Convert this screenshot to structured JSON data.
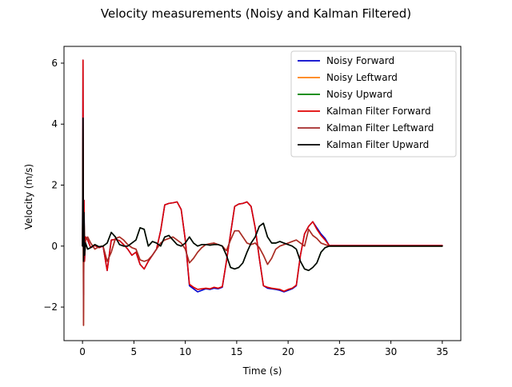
{
  "chart_data": {
    "type": "line",
    "title": "Velocity measurements (Noisy and Kalman Filtered)",
    "xlabel": "Time (s)",
    "ylabel": "Velocity (m/s)",
    "xlim": [
      -1.8,
      36.8
    ],
    "ylim": [
      -3.1,
      6.55
    ],
    "xticks": [
      0,
      5,
      10,
      15,
      20,
      25,
      30,
      35
    ],
    "yticks": [
      -2,
      0,
      2,
      4,
      6
    ],
    "xtick_labels": [
      "0",
      "5",
      "10",
      "15",
      "20",
      "25",
      "30",
      "35"
    ],
    "ytick_labels": [
      "−2",
      "0",
      "2",
      "4",
      "6"
    ],
    "grid": false,
    "legend_position": "top-right",
    "series": [
      {
        "name": "Noisy Forward",
        "color": "#0000cc",
        "x": [
          0,
          0.05,
          0.1,
          0.15,
          0.2,
          0.3,
          0.5,
          0.8,
          1.2,
          1.6,
          2,
          2.4,
          2.8,
          3.2,
          3.6,
          4,
          4.4,
          4.8,
          5.2,
          5.6,
          6,
          6.4,
          6.8,
          7.2,
          7.6,
          8,
          8.4,
          8.8,
          9.2,
          9.6,
          10,
          10.4,
          10.8,
          11.2,
          11.6,
          12,
          12.4,
          12.8,
          13.2,
          13.6,
          14,
          14.4,
          14.8,
          15.2,
          15.6,
          16,
          16.4,
          16.8,
          17.2,
          17.6,
          18,
          18.4,
          18.8,
          19.2,
          19.6,
          20,
          20.4,
          20.8,
          21.2,
          21.6,
          22,
          22.4,
          22.8,
          23.2,
          23.6,
          24,
          26,
          28,
          30,
          32,
          34,
          35
        ],
        "y": [
          0.0,
          6.1,
          -1.6,
          1.5,
          -0.5,
          0.3,
          0.2,
          -0.05,
          0.02,
          -0.05,
          0.0,
          -0.8,
          0.2,
          0.22,
          0.18,
          0.05,
          -0.1,
          -0.3,
          -0.2,
          -0.6,
          -0.75,
          -0.5,
          -0.3,
          -0.1,
          0.5,
          1.35,
          1.4,
          1.42,
          1.45,
          1.2,
          0.2,
          -1.3,
          -1.4,
          -1.5,
          -1.45,
          -1.4,
          -1.42,
          -1.38,
          -1.4,
          -1.35,
          -0.5,
          0.4,
          1.3,
          1.38,
          1.4,
          1.45,
          1.3,
          0.6,
          -0.4,
          -1.3,
          -1.38,
          -1.4,
          -1.42,
          -1.45,
          -1.5,
          -1.45,
          -1.4,
          -1.3,
          -0.3,
          0.4,
          0.65,
          0.8,
          0.6,
          0.4,
          0.25,
          0.02,
          0.02,
          0.02,
          0.02,
          0.02,
          0.02,
          0.02
        ]
      },
      {
        "name": "Noisy Leftward",
        "color": "#ff7f0e",
        "x": [
          0,
          0.05,
          0.1,
          0.15,
          0.2,
          0.3,
          0.5,
          0.8,
          1.2,
          1.6,
          2,
          2.4,
          2.8,
          3.2,
          3.6,
          4,
          4.4,
          4.8,
          5.2,
          5.6,
          6,
          6.4,
          6.8,
          7.2,
          7.6,
          8,
          8.4,
          8.8,
          9.2,
          9.6,
          10,
          10.4,
          10.8,
          11.2,
          11.6,
          12,
          12.4,
          12.8,
          13.2,
          13.6,
          14,
          14.4,
          14.8,
          15.2,
          15.6,
          16,
          16.4,
          16.8,
          17.2,
          17.6,
          18,
          18.4,
          18.8,
          19.2,
          19.6,
          20,
          20.4,
          20.8,
          21.2,
          21.6,
          22,
          22.4,
          22.8,
          23.2,
          23.6,
          24,
          26,
          28,
          30,
          32,
          34,
          35
        ],
        "y": [
          0.0,
          2.8,
          -2.6,
          1.0,
          -0.3,
          0.2,
          0.3,
          0.1,
          -0.1,
          -0.02,
          0.0,
          -0.5,
          -0.2,
          0.25,
          0.3,
          0.2,
          0.05,
          -0.05,
          -0.1,
          -0.45,
          -0.5,
          -0.45,
          -0.3,
          -0.1,
          0.1,
          0.2,
          0.25,
          0.3,
          0.2,
          0.1,
          -0.1,
          -0.55,
          -0.4,
          -0.2,
          -0.05,
          0.05,
          0.08,
          0.1,
          0.05,
          0.0,
          -0.15,
          0.2,
          0.5,
          0.5,
          0.3,
          0.1,
          0.05,
          0.1,
          -0.05,
          -0.3,
          -0.6,
          -0.4,
          -0.1,
          0.0,
          0.05,
          0.1,
          0.15,
          0.2,
          0.1,
          0.0,
          0.55,
          0.35,
          0.25,
          0.1,
          0.05,
          0.0,
          0.0,
          0.0,
          0.0,
          0.0,
          0.0,
          0.0
        ]
      },
      {
        "name": "Noisy Upward",
        "color": "#008000",
        "x": [
          0,
          0.05,
          0.1,
          0.15,
          0.2,
          0.3,
          0.5,
          0.8,
          1.2,
          1.6,
          2,
          2.4,
          2.8,
          3.2,
          3.6,
          4,
          4.4,
          4.8,
          5.2,
          5.6,
          6,
          6.4,
          6.8,
          7.2,
          7.6,
          8,
          8.4,
          8.8,
          9.2,
          9.6,
          10,
          10.4,
          10.8,
          11.2,
          11.6,
          12,
          12.4,
          12.8,
          13.2,
          13.6,
          14,
          14.4,
          14.8,
          15.2,
          15.6,
          16,
          16.4,
          16.8,
          17.2,
          17.6,
          18,
          18.4,
          18.8,
          19.2,
          19.6,
          20,
          20.4,
          20.8,
          21.2,
          21.6,
          22,
          22.4,
          22.8,
          23.2,
          23.6,
          24,
          26,
          28,
          30,
          32,
          34,
          35
        ],
        "y": [
          0.0,
          4.2,
          -0.5,
          1.1,
          -0.3,
          0.1,
          -0.1,
          -0.05,
          0.05,
          -0.02,
          0.0,
          0.1,
          0.45,
          0.3,
          0.05,
          0.0,
          0.0,
          0.1,
          0.2,
          0.6,
          0.55,
          0.0,
          0.15,
          0.1,
          0.0,
          0.3,
          0.35,
          0.2,
          0.05,
          0.0,
          0.1,
          0.3,
          0.1,
          0.0,
          0.05,
          0.05,
          0.03,
          0.05,
          0.05,
          0.0,
          -0.3,
          -0.7,
          -0.75,
          -0.7,
          -0.55,
          -0.2,
          0.1,
          0.3,
          0.65,
          0.75,
          0.3,
          0.1,
          0.1,
          0.15,
          0.1,
          0.05,
          0.0,
          -0.1,
          -0.5,
          -0.75,
          -0.8,
          -0.7,
          -0.55,
          -0.2,
          -0.05,
          0.0,
          0.0,
          0.0,
          0.0,
          0.0,
          0.0,
          0.0
        ]
      },
      {
        "name": "Kalman Filter Forward",
        "color": "#e00000",
        "x": [
          0,
          0.05,
          0.1,
          0.15,
          0.2,
          0.3,
          0.5,
          0.8,
          1.2,
          1.6,
          2,
          2.4,
          2.8,
          3.2,
          3.6,
          4,
          4.4,
          4.8,
          5.2,
          5.6,
          6,
          6.4,
          6.8,
          7.2,
          7.6,
          8,
          8.4,
          8.8,
          9.2,
          9.6,
          10,
          10.4,
          10.8,
          11.2,
          11.6,
          12,
          12.4,
          12.8,
          13.2,
          13.6,
          14,
          14.4,
          14.8,
          15.2,
          15.6,
          16,
          16.4,
          16.8,
          17.2,
          17.6,
          18,
          18.4,
          18.8,
          19.2,
          19.6,
          20,
          20.4,
          20.8,
          21.2,
          21.6,
          22,
          22.4,
          22.8,
          23.2,
          23.6,
          24,
          26,
          28,
          30,
          32,
          34,
          35
        ],
        "y": [
          0.0,
          6.1,
          -1.6,
          1.5,
          -0.5,
          0.3,
          0.2,
          -0.05,
          0.02,
          -0.05,
          0.0,
          -0.8,
          0.2,
          0.22,
          0.18,
          0.05,
          -0.1,
          -0.3,
          -0.2,
          -0.6,
          -0.75,
          -0.5,
          -0.3,
          -0.1,
          0.5,
          1.35,
          1.4,
          1.42,
          1.45,
          1.2,
          0.2,
          -1.25,
          -1.35,
          -1.42,
          -1.4,
          -1.38,
          -1.4,
          -1.35,
          -1.38,
          -1.33,
          -0.5,
          0.4,
          1.3,
          1.38,
          1.4,
          1.45,
          1.3,
          0.6,
          -0.4,
          -1.3,
          -1.35,
          -1.38,
          -1.4,
          -1.42,
          -1.48,
          -1.42,
          -1.38,
          -1.28,
          -0.3,
          0.4,
          0.65,
          0.8,
          0.55,
          0.35,
          0.2,
          0.02,
          0.02,
          0.02,
          0.02,
          0.02,
          0.02,
          0.02
        ]
      },
      {
        "name": "Kalman Filter Leftward",
        "color": "#a52a2a",
        "x": [
          0,
          0.05,
          0.1,
          0.15,
          0.2,
          0.3,
          0.5,
          0.8,
          1.2,
          1.6,
          2,
          2.4,
          2.8,
          3.2,
          3.6,
          4,
          4.4,
          4.8,
          5.2,
          5.6,
          6,
          6.4,
          6.8,
          7.2,
          7.6,
          8,
          8.4,
          8.8,
          9.2,
          9.6,
          10,
          10.4,
          10.8,
          11.2,
          11.6,
          12,
          12.4,
          12.8,
          13.2,
          13.6,
          14,
          14.4,
          14.8,
          15.2,
          15.6,
          16,
          16.4,
          16.8,
          17.2,
          17.6,
          18,
          18.4,
          18.8,
          19.2,
          19.6,
          20,
          20.4,
          20.8,
          21.2,
          21.6,
          22,
          22.4,
          22.8,
          23.2,
          23.6,
          24,
          26,
          28,
          30,
          32,
          34,
          35
        ],
        "y": [
          0.0,
          2.8,
          -2.6,
          1.0,
          -0.3,
          0.2,
          0.3,
          0.1,
          -0.1,
          -0.02,
          0.0,
          -0.5,
          -0.2,
          0.25,
          0.3,
          0.2,
          0.05,
          -0.05,
          -0.1,
          -0.45,
          -0.5,
          -0.45,
          -0.3,
          -0.1,
          0.1,
          0.2,
          0.25,
          0.3,
          0.2,
          0.1,
          -0.1,
          -0.55,
          -0.4,
          -0.2,
          -0.05,
          0.05,
          0.08,
          0.1,
          0.05,
          0.0,
          -0.15,
          0.2,
          0.5,
          0.5,
          0.3,
          0.1,
          0.05,
          0.1,
          -0.05,
          -0.3,
          -0.6,
          -0.4,
          -0.1,
          0.0,
          0.05,
          0.1,
          0.15,
          0.2,
          0.1,
          0.0,
          0.55,
          0.35,
          0.25,
          0.1,
          0.05,
          0.0,
          0.0,
          0.0,
          0.0,
          0.0,
          0.0,
          0.0
        ]
      },
      {
        "name": "Kalman Filter Upward",
        "color": "#000000",
        "x": [
          0,
          0.05,
          0.1,
          0.15,
          0.2,
          0.3,
          0.5,
          0.8,
          1.2,
          1.6,
          2,
          2.4,
          2.8,
          3.2,
          3.6,
          4,
          4.4,
          4.8,
          5.2,
          5.6,
          6,
          6.4,
          6.8,
          7.2,
          7.6,
          8,
          8.4,
          8.8,
          9.2,
          9.6,
          10,
          10.4,
          10.8,
          11.2,
          11.6,
          12,
          12.4,
          12.8,
          13.2,
          13.6,
          14,
          14.4,
          14.8,
          15.2,
          15.6,
          16,
          16.4,
          16.8,
          17.2,
          17.6,
          18,
          18.4,
          18.8,
          19.2,
          19.6,
          20,
          20.4,
          20.8,
          21.2,
          21.6,
          22,
          22.4,
          22.8,
          23.2,
          23.6,
          24,
          26,
          28,
          30,
          32,
          34,
          35
        ],
        "y": [
          0.0,
          4.2,
          -0.5,
          1.1,
          -0.3,
          0.1,
          -0.1,
          -0.05,
          0.05,
          -0.02,
          0.0,
          0.1,
          0.45,
          0.3,
          0.05,
          0.0,
          0.0,
          0.1,
          0.2,
          0.6,
          0.55,
          0.0,
          0.15,
          0.1,
          0.0,
          0.3,
          0.35,
          0.2,
          0.05,
          0.0,
          0.1,
          0.3,
          0.1,
          0.0,
          0.05,
          0.05,
          0.03,
          0.05,
          0.05,
          0.0,
          -0.3,
          -0.7,
          -0.75,
          -0.7,
          -0.55,
          -0.2,
          0.1,
          0.3,
          0.65,
          0.75,
          0.3,
          0.1,
          0.1,
          0.15,
          0.1,
          0.05,
          0.0,
          -0.1,
          -0.5,
          -0.75,
          -0.8,
          -0.7,
          -0.55,
          -0.2,
          -0.05,
          0.0,
          0.0,
          0.0,
          0.0,
          0.0,
          0.0,
          0.0
        ]
      }
    ]
  }
}
